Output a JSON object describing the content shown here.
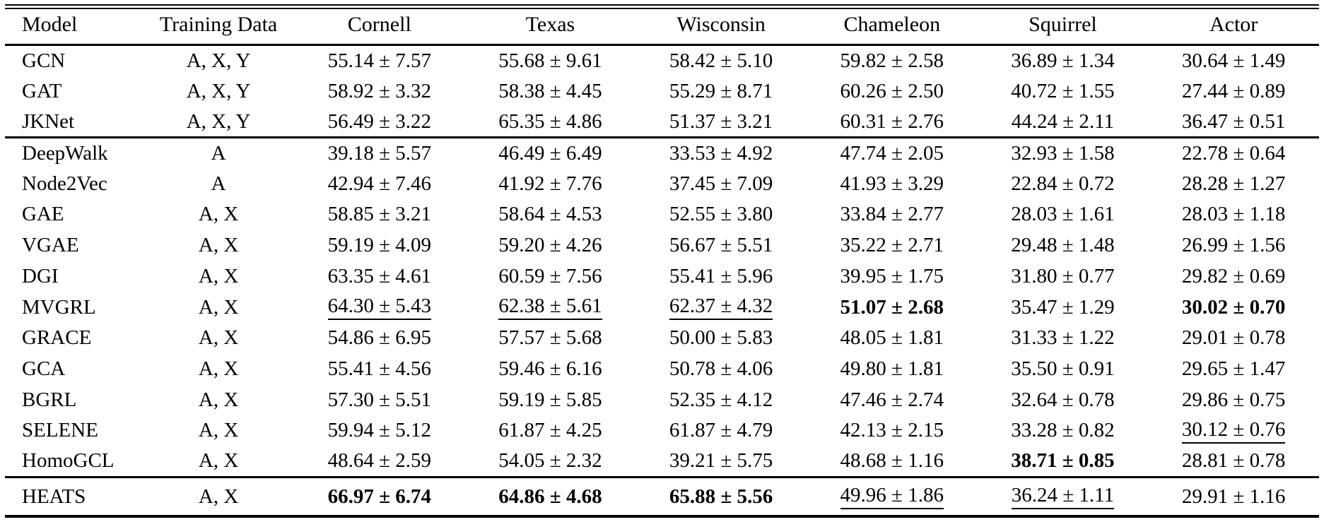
{
  "colors": {
    "text": "#000000",
    "background": "#ffffff",
    "rule": "#000000"
  },
  "table": {
    "columns": [
      "Model",
      "Training Data",
      "Cornell",
      "Texas",
      "Wisconsin",
      "Chameleon",
      "Squirrel",
      "Actor"
    ],
    "groups": [
      {
        "rows": [
          {
            "model": "GCN",
            "training_data": "A, X, Y",
            "scores": [
              {
                "text": "55.14 ± 7.57",
                "style": "normal"
              },
              {
                "text": "55.68 ± 9.61",
                "style": "normal"
              },
              {
                "text": "58.42 ± 5.10",
                "style": "normal"
              },
              {
                "text": "59.82 ± 2.58",
                "style": "normal"
              },
              {
                "text": "36.89 ± 1.34",
                "style": "normal"
              },
              {
                "text": "30.64 ± 1.49",
                "style": "normal"
              }
            ]
          },
          {
            "model": "GAT",
            "training_data": "A, X, Y",
            "scores": [
              {
                "text": "58.92 ± 3.32",
                "style": "normal"
              },
              {
                "text": "58.38 ± 4.45",
                "style": "normal"
              },
              {
                "text": "55.29 ± 8.71",
                "style": "normal"
              },
              {
                "text": "60.26 ± 2.50",
                "style": "normal"
              },
              {
                "text": "40.72 ± 1.55",
                "style": "normal"
              },
              {
                "text": "27.44 ± 0.89",
                "style": "normal"
              }
            ]
          },
          {
            "model": "JKNet",
            "training_data": "A, X, Y",
            "scores": [
              {
                "text": "56.49 ± 3.22",
                "style": "normal"
              },
              {
                "text": "65.35 ± 4.86",
                "style": "normal"
              },
              {
                "text": "51.37 ± 3.21",
                "style": "normal"
              },
              {
                "text": "60.31 ± 2.76",
                "style": "normal"
              },
              {
                "text": "44.24 ± 2.11",
                "style": "normal"
              },
              {
                "text": "36.47 ± 0.51",
                "style": "normal"
              }
            ]
          }
        ]
      },
      {
        "rows": [
          {
            "model": "DeepWalk",
            "training_data": "A",
            "scores": [
              {
                "text": "39.18 ± 5.57",
                "style": "normal"
              },
              {
                "text": "46.49 ± 6.49",
                "style": "normal"
              },
              {
                "text": "33.53 ± 4.92",
                "style": "normal"
              },
              {
                "text": "47.74 ± 2.05",
                "style": "normal"
              },
              {
                "text": "32.93 ± 1.58",
                "style": "normal"
              },
              {
                "text": "22.78 ± 0.64",
                "style": "normal"
              }
            ]
          },
          {
            "model": "Node2Vec",
            "training_data": "A",
            "scores": [
              {
                "text": "42.94 ± 7.46",
                "style": "normal"
              },
              {
                "text": "41.92 ± 7.76",
                "style": "normal"
              },
              {
                "text": "37.45 ± 7.09",
                "style": "normal"
              },
              {
                "text": "41.93 ± 3.29",
                "style": "normal"
              },
              {
                "text": "22.84 ± 0.72",
                "style": "normal"
              },
              {
                "text": "28.28 ± 1.27",
                "style": "normal"
              }
            ]
          },
          {
            "model": "GAE",
            "training_data": "A, X",
            "scores": [
              {
                "text": "58.85 ± 3.21",
                "style": "normal"
              },
              {
                "text": "58.64 ± 4.53",
                "style": "normal"
              },
              {
                "text": "52.55 ± 3.80",
                "style": "normal"
              },
              {
                "text": "33.84 ± 2.77",
                "style": "normal"
              },
              {
                "text": "28.03 ± 1.61",
                "style": "normal"
              },
              {
                "text": "28.03 ± 1.18",
                "style": "normal"
              }
            ]
          },
          {
            "model": "VGAE",
            "training_data": "A, X",
            "scores": [
              {
                "text": "59.19 ± 4.09",
                "style": "normal"
              },
              {
                "text": "59.20 ± 4.26",
                "style": "normal"
              },
              {
                "text": "56.67 ± 5.51",
                "style": "normal"
              },
              {
                "text": "35.22 ± 2.71",
                "style": "normal"
              },
              {
                "text": "29.48 ± 1.48",
                "style": "normal"
              },
              {
                "text": "26.99 ± 1.56",
                "style": "normal"
              }
            ]
          },
          {
            "model": "DGI",
            "training_data": "A, X",
            "scores": [
              {
                "text": "63.35 ± 4.61",
                "style": "normal"
              },
              {
                "text": "60.59 ± 7.56",
                "style": "normal"
              },
              {
                "text": "55.41 ± 5.96",
                "style": "normal"
              },
              {
                "text": "39.95 ± 1.75",
                "style": "normal"
              },
              {
                "text": "31.80 ± 0.77",
                "style": "normal"
              },
              {
                "text": "29.82 ± 0.69",
                "style": "normal"
              }
            ]
          },
          {
            "model": "MVGRL",
            "training_data": "A, X",
            "scores": [
              {
                "text": "64.30 ± 5.43",
                "style": "underline"
              },
              {
                "text": "62.38 ± 5.61",
                "style": "underline"
              },
              {
                "text": "62.37 ± 4.32",
                "style": "underline"
              },
              {
                "text": "51.07 ± 2.68",
                "style": "bold"
              },
              {
                "text": "35.47 ± 1.29",
                "style": "normal"
              },
              {
                "text": "30.02 ± 0.70",
                "style": "bold"
              }
            ]
          },
          {
            "model": "GRACE",
            "training_data": "A, X",
            "scores": [
              {
                "text": "54.86 ± 6.95",
                "style": "normal"
              },
              {
                "text": "57.57 ± 5.68",
                "style": "normal"
              },
              {
                "text": "50.00 ± 5.83",
                "style": "normal"
              },
              {
                "text": "48.05 ± 1.81",
                "style": "normal"
              },
              {
                "text": "31.33 ± 1.22",
                "style": "normal"
              },
              {
                "text": "29.01 ± 0.78",
                "style": "normal"
              }
            ]
          },
          {
            "model": "GCA",
            "training_data": "A, X",
            "scores": [
              {
                "text": "55.41 ± 4.56",
                "style": "normal"
              },
              {
                "text": "59.46 ± 6.16",
                "style": "normal"
              },
              {
                "text": "50.78 ± 4.06",
                "style": "normal"
              },
              {
                "text": "49.80 ± 1.81",
                "style": "normal"
              },
              {
                "text": "35.50 ± 0.91",
                "style": "normal"
              },
              {
                "text": "29.65 ± 1.47",
                "style": "normal"
              }
            ]
          },
          {
            "model": "BGRL",
            "training_data": "A, X",
            "scores": [
              {
                "text": "57.30 ± 5.51",
                "style": "normal"
              },
              {
                "text": "59.19 ± 5.85",
                "style": "normal"
              },
              {
                "text": "52.35 ± 4.12",
                "style": "normal"
              },
              {
                "text": "47.46 ± 2.74",
                "style": "normal"
              },
              {
                "text": "32.64 ± 0.78",
                "style": "normal"
              },
              {
                "text": "29.86 ± 0.75",
                "style": "normal"
              }
            ]
          },
          {
            "model": "SELENE",
            "training_data": "A, X",
            "scores": [
              {
                "text": "59.94 ± 5.12",
                "style": "normal"
              },
              {
                "text": "61.87 ± 4.25",
                "style": "normal"
              },
              {
                "text": "61.87 ± 4.79",
                "style": "normal"
              },
              {
                "text": "42.13 ± 2.15",
                "style": "normal"
              },
              {
                "text": "33.28 ± 0.82",
                "style": "normal"
              },
              {
                "text": "30.12 ± 0.76",
                "style": "underline"
              }
            ]
          },
          {
            "model": "HomoGCL",
            "training_data": "A, X",
            "scores": [
              {
                "text": "48.64 ± 2.59",
                "style": "normal"
              },
              {
                "text": "54.05 ± 2.32",
                "style": "normal"
              },
              {
                "text": "39.21 ± 5.75",
                "style": "normal"
              },
              {
                "text": "48.68 ± 1.16",
                "style": "normal"
              },
              {
                "text": "38.71 ± 0.85",
                "style": "bold"
              },
              {
                "text": "28.81 ± 0.78",
                "style": "normal"
              }
            ]
          }
        ]
      },
      {
        "rows": [
          {
            "model": "HEATS",
            "training_data": "A, X",
            "scores": [
              {
                "text": "66.97 ± 6.74",
                "style": "bold"
              },
              {
                "text": "64.86 ± 4.68",
                "style": "bold"
              },
              {
                "text": "65.88 ± 5.56",
                "style": "bold"
              },
              {
                "text": "49.96 ± 1.86",
                "style": "underline"
              },
              {
                "text": "36.24 ± 1.11",
                "style": "underline"
              },
              {
                "text": "29.91 ± 1.16",
                "style": "normal"
              }
            ]
          }
        ]
      }
    ]
  }
}
